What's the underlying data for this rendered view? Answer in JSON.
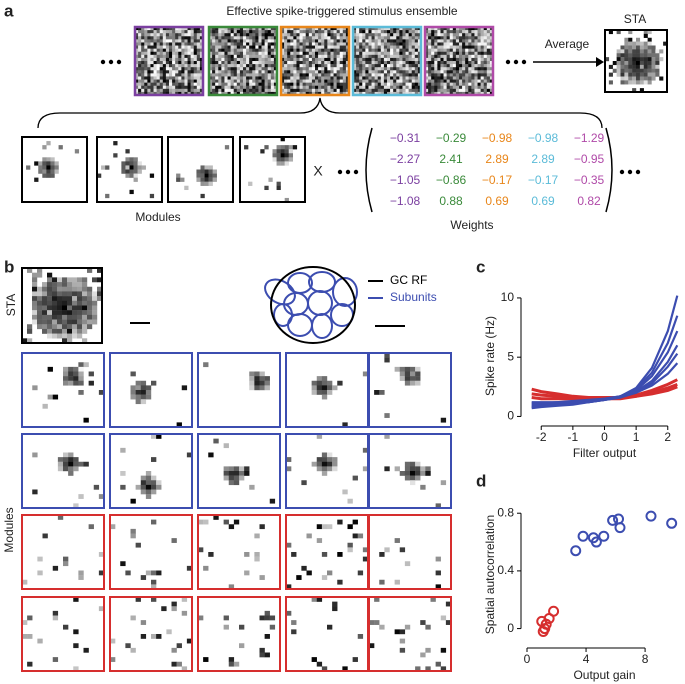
{
  "panel_a": {
    "label": "a",
    "title": "Effective spike-triggered stimulus ensemble",
    "average": "Average",
    "sta": "STA",
    "modules": "Modules",
    "times": "X",
    "weights_label": "Weights",
    "column_colors": [
      "#7b3fa0",
      "#3a8a3a",
      "#e8861a",
      "#5bbbd8",
      "#b04aa8"
    ],
    "weights": {
      "rows": [
        [
          "−0.31",
          "−0.29",
          "−0.98",
          "−0.98",
          "−1.29"
        ],
        [
          "−2.27",
          "2.41",
          "2.89",
          "2.89",
          "−0.95"
        ],
        [
          "−1.05",
          "−0.86",
          "−0.17",
          "−0.17",
          "−0.35"
        ],
        [
          "−1.08",
          "0.88",
          "0.69",
          "0.69",
          "0.82"
        ]
      ]
    }
  },
  "panel_b": {
    "label": "b",
    "sta": "STA",
    "legend": [
      "GC RF",
      "Subunits"
    ],
    "legend_colors": [
      "#000000",
      "#3c4db0"
    ],
    "modules": "Modules"
  },
  "chart_data": [
    {
      "type": "line",
      "label": "c",
      "xlabel": "Filter output",
      "ylabel": "Spike rate (Hz)",
      "x": [
        -2.3,
        -2,
        -1.5,
        -1,
        -0.5,
        0,
        0.5,
        1,
        1.5,
        2,
        2.3
      ],
      "xlim": [
        -2.45,
        2.45
      ],
      "xticks": [
        -2,
        -1,
        0,
        1,
        2
      ],
      "ylim": [
        -0.3,
        10.5
      ],
      "yticks": [
        0,
        5,
        10
      ],
      "series": [
        {
          "color": "#d62e2e",
          "values": [
            2.3,
            2.1,
            1.9,
            1.7,
            1.6,
            1.6,
            1.6,
            1.8,
            2.2,
            2.7,
            3.1
          ]
        },
        {
          "color": "#d62e2e",
          "values": [
            1.9,
            1.8,
            1.7,
            1.6,
            1.5,
            1.5,
            1.6,
            1.7,
            2.0,
            2.4,
            2.7
          ]
        },
        {
          "color": "#d62e2e",
          "values": [
            1.6,
            1.5,
            1.5,
            1.5,
            1.5,
            1.5,
            1.5,
            1.7,
            1.9,
            2.2,
            2.5
          ]
        },
        {
          "color": "#3c4db0",
          "values": [
            0.9,
            0.9,
            1.0,
            1.1,
            1.2,
            1.4,
            1.7,
            2.4,
            4.1,
            7.2,
            10.2
          ]
        },
        {
          "color": "#3c4db0",
          "values": [
            1.0,
            1.0,
            1.1,
            1.2,
            1.3,
            1.4,
            1.7,
            2.3,
            3.7,
            6.2,
            8.5
          ]
        },
        {
          "color": "#3c4db0",
          "values": [
            0.8,
            0.9,
            1.0,
            1.1,
            1.2,
            1.4,
            1.6,
            2.2,
            3.4,
            5.4,
            7.2
          ]
        },
        {
          "color": "#3c4db0",
          "values": [
            1.1,
            1.1,
            1.2,
            1.2,
            1.3,
            1.5,
            1.7,
            2.1,
            3.0,
            4.6,
            6.0
          ]
        },
        {
          "color": "#3c4db0",
          "values": [
            0.7,
            0.8,
            0.9,
            1.0,
            1.2,
            1.4,
            1.6,
            2.0,
            2.8,
            4.2,
            5.3
          ]
        },
        {
          "color": "#3c4db0",
          "values": [
            1.2,
            1.2,
            1.2,
            1.3,
            1.4,
            1.5,
            1.7,
            2.0,
            2.6,
            3.6,
            4.5
          ]
        }
      ]
    },
    {
      "type": "scatter",
      "label": "d",
      "xlabel": "Output gain",
      "ylabel": "Spatial autocorrelation",
      "xlim": [
        0,
        10.5
      ],
      "xticks": [
        0,
        4,
        8
      ],
      "ylim": [
        -0.1,
        0.85
      ],
      "yticks": [
        0,
        0.4,
        0.8
      ],
      "series": [
        {
          "color": "#3c4db0",
          "x": [
            3.3,
            3.8,
            4.5,
            4.7,
            5.2,
            5.8,
            6.2,
            6.3,
            8.4,
            9.8
          ],
          "values": [
            0.54,
            0.64,
            0.63,
            0.6,
            0.64,
            0.75,
            0.76,
            0.7,
            0.78,
            0.73
          ]
        },
        {
          "color": "#d62e2e",
          "x": [
            1.0,
            1.1,
            1.2,
            1.3,
            1.5,
            1.8
          ],
          "values": [
            0.05,
            -0.02,
            0.0,
            0.03,
            0.07,
            0.12
          ]
        }
      ]
    }
  ]
}
